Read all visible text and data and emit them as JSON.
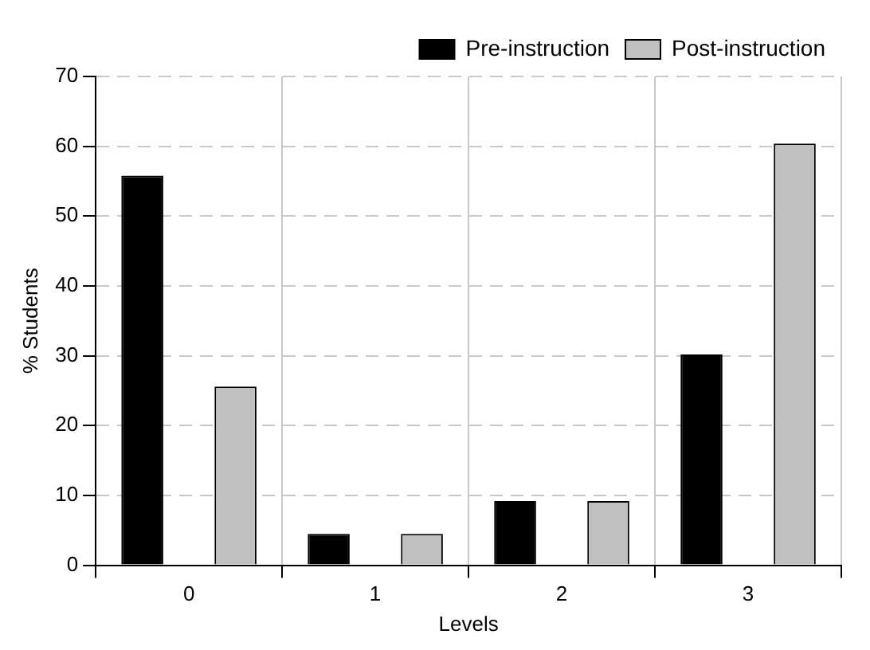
{
  "chart_data": {
    "type": "bar",
    "xlabel": "Levels",
    "ylabel": "% Students",
    "categories": [
      "0",
      "1",
      "2",
      "3"
    ],
    "series": [
      {
        "name": "Pre-instruction",
        "color": "#000000",
        "values": [
          55.8,
          4.5,
          9.2,
          30.2
        ]
      },
      {
        "name": "Post-instruction",
        "color": "#c0c0c0",
        "values": [
          25.6,
          4.5,
          9.2,
          60.4
        ]
      }
    ],
    "ylim": [
      0,
      70
    ],
    "yticks": [
      0,
      10,
      20,
      30,
      40,
      50,
      60,
      70
    ],
    "grid": true,
    "legend": "top right"
  }
}
